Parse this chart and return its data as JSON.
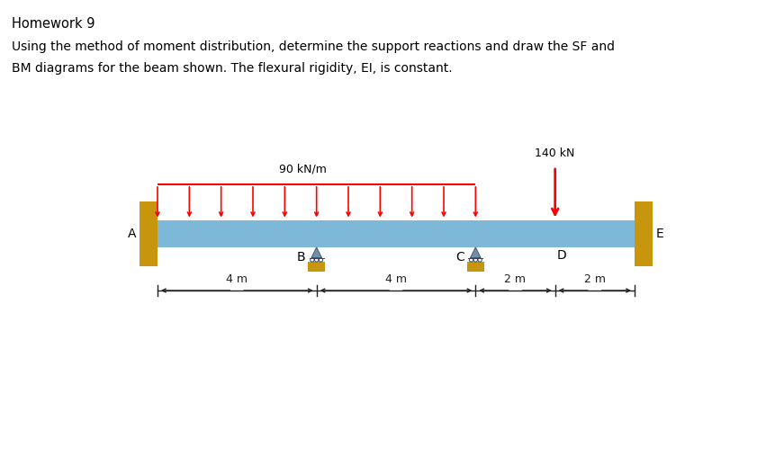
{
  "title": "Homework 9",
  "description_line1": "Using the method of moment distribution, determine the support reactions and draw the SF and",
  "description_line2": "BM diagrams for the beam shown. The flexural rigidity, EI, is constant.",
  "beam_color": "#7db8d8",
  "wall_color": "#c8960c",
  "support_color": "#c8960c",
  "support_tri_color": "#7090b0",
  "arrow_color": "#ff0000",
  "dim_arrow_color": "#222222",
  "dist_load_label": "90 kN/m",
  "point_load_label": "140 kN",
  "nodes": [
    "A",
    "B",
    "C",
    "D",
    "E"
  ],
  "span_labels": [
    "4 m",
    "4 m",
    "2 m",
    "2 m"
  ],
  "text_color": "#000000",
  "bg_color": "#ffffff",
  "fig_width": 8.41,
  "fig_height": 5.17,
  "dpi": 100
}
